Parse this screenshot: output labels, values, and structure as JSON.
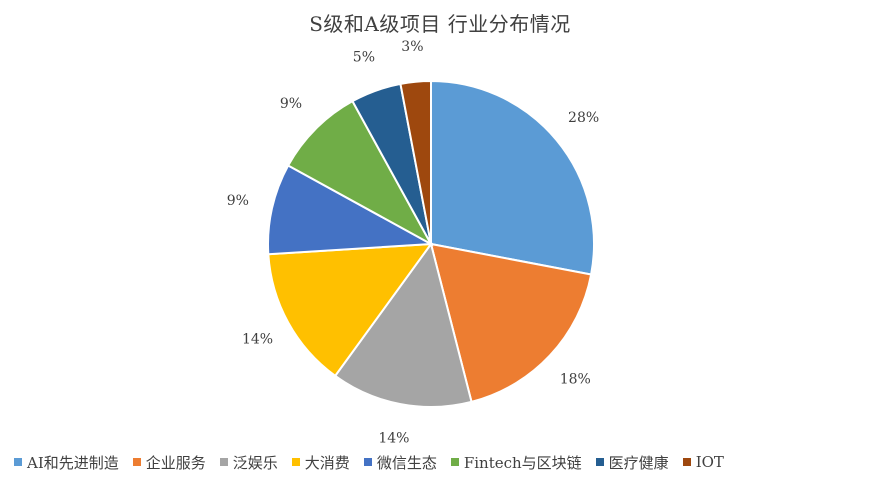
{
  "chart_data": {
    "type": "pie",
    "title": "S级和A级项目 行业分布情况",
    "categories": [
      "AI和先进制造",
      "企业服务",
      "泛娱乐",
      "大消费",
      "微信生态",
      "Fintech与区块链",
      "医疗健康",
      "IOT"
    ],
    "values": [
      28,
      18,
      14,
      14,
      9,
      9,
      5,
      3
    ],
    "labels": [
      "28%",
      "18%",
      "14%",
      "14%",
      "9%",
      "9%",
      "5%",
      "3%"
    ],
    "colors": [
      "#5B9BD5",
      "#ED7D31",
      "#A5A5A5",
      "#FFC000",
      "#4472C4",
      "#70AD47",
      "#255E91",
      "#9E480E"
    ],
    "legend": "bottom",
    "start_angle": "12 o'clock",
    "direction": "clockwise"
  }
}
